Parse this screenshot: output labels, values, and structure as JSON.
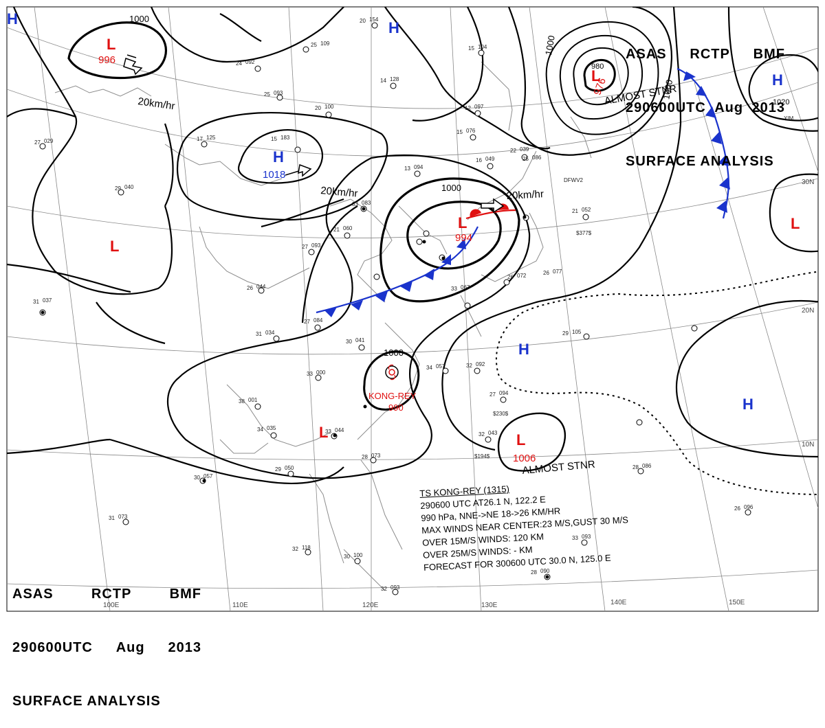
{
  "header_top": {
    "line1": [
      "ASAS",
      "RCTP",
      "BMF"
    ],
    "line2": [
      "290600UTC",
      "Aug",
      "2013"
    ],
    "line3": "SURFACE ANALYSIS"
  },
  "header_bottom": {
    "line1": [
      "ASAS",
      "RCTP",
      "BMF"
    ],
    "line2": [
      "290600UTC",
      "Aug",
      "2013"
    ],
    "line3": "SURFACE ANALYSIS"
  },
  "colors": {
    "high": "#1a33cc",
    "low": "#e01010",
    "cold_front": "#1a33cc",
    "warm_front": "#e01010",
    "isobar": "#000000",
    "grid": "#888888",
    "coast": "#999999"
  },
  "longitude_labels": [
    "110E",
    "120E",
    "130E",
    "140E",
    "150E",
    "100E"
  ],
  "latitude_labels": [
    "30N",
    "20N",
    "10N"
  ],
  "pressure_systems": [
    {
      "type": "H",
      "value": ""
    },
    {
      "type": "L",
      "value": "996"
    },
    {
      "type": "H",
      "value": ""
    },
    {
      "type": "H",
      "value": "1018"
    },
    {
      "type": "L",
      "value": ""
    },
    {
      "type": "L",
      "value": "994"
    },
    {
      "type": "L",
      "value": "976"
    },
    {
      "type": "H",
      "value": ""
    },
    {
      "type": "L",
      "value": ""
    },
    {
      "type": "H",
      "value": ""
    },
    {
      "type": "H",
      "value": ""
    },
    {
      "type": "L",
      "value": "1006"
    },
    {
      "type": "L",
      "value": ""
    }
  ],
  "isobar_labels": [
    "1000",
    "1000",
    "1000",
    "1000",
    "1000",
    "980",
    "1020"
  ],
  "motion_labels": [
    "20km/hr",
    "20km/hr",
    "20km/hr"
  ],
  "annotations": [
    "ALMOST STNR",
    "ALMOST STNR"
  ],
  "typhoon": {
    "name": "KONG-REY",
    "pressure": "990"
  },
  "storm_info": {
    "title": "TS KONG-REY (1315)",
    "line1": "290600 UTC  AT26.1 N, 122.2 E",
    "line2": "990 hPa, NNE->NE  18->26 KM/HR",
    "line3": "MAX WINDS NEAR CENTER:23 M/S,GUST 30 M/S",
    "line4": "OVER 15M/S WINDS: 120 KM",
    "line5": "OVER 25M/S WINDS: - KM",
    "line6": "FORECAST FOR 300600 UTC 30.0 N, 125.0 E"
  },
  "station_reports": [
    {
      "temp": "20",
      "pressure": "154"
    },
    {
      "temp": "25",
      "pressure": "109"
    },
    {
      "temp": "24",
      "pressure": "092"
    },
    {
      "temp": "25",
      "pressure": "093"
    },
    {
      "temp": "20",
      "pressure": "100"
    },
    {
      "temp": "14",
      "pressure": "128"
    },
    {
      "temp": "15",
      "pressure": "104"
    },
    {
      "temp": "12",
      "pressure": "097"
    },
    {
      "temp": "15",
      "pressure": "076"
    },
    {
      "temp": "17",
      "pressure": "125"
    },
    {
      "temp": "15",
      "pressure": "183"
    },
    {
      "temp": "27",
      "pressure": "029"
    },
    {
      "temp": "29",
      "pressure": "040"
    },
    {
      "temp": "33",
      "pressure": "083"
    },
    {
      "temp": "13",
      "pressure": "094"
    },
    {
      "temp": "16",
      "pressure": "049"
    },
    {
      "temp": "22",
      "pressure": "039"
    },
    {
      "temp": "21",
      "pressure": "052"
    },
    {
      "temp": "21",
      "pressure": "060"
    },
    {
      "temp": "27",
      "pressure": "093"
    },
    {
      "temp": "26",
      "pressure": "044"
    },
    {
      "temp": "27",
      "pressure": "084"
    },
    {
      "temp": "31",
      "pressure": "034"
    },
    {
      "temp": "31",
      "pressure": "037"
    },
    {
      "temp": "30",
      "pressure": "041"
    },
    {
      "temp": "33",
      "pressure": "000"
    },
    {
      "temp": "38",
      "pressure": "001"
    },
    {
      "temp": "34",
      "pressure": "035"
    },
    {
      "temp": "33",
      "pressure": "044"
    },
    {
      "temp": "29",
      "pressure": "050"
    },
    {
      "temp": "30",
      "pressure": "057"
    },
    {
      "temp": "28",
      "pressure": "073"
    },
    {
      "temp": "31",
      "pressure": "073"
    },
    {
      "temp": "32",
      "pressure": "118"
    },
    {
      "temp": "30",
      "pressure": "100"
    },
    {
      "temp": "32",
      "pressure": "093"
    },
    {
      "temp": "32",
      "pressure": "092"
    },
    {
      "temp": "27",
      "pressure": "094"
    },
    {
      "temp": "32",
      "pressure": "043"
    },
    {
      "temp": "29",
      "pressure": "105"
    },
    {
      "temp": "26",
      "pressure": "096"
    },
    {
      "temp": "28",
      "pressure": "086"
    },
    {
      "temp": "33",
      "pressure": "093"
    },
    {
      "temp": "28",
      "pressure": "090"
    },
    {
      "temp": "34",
      "pressure": "057"
    },
    {
      "temp": "33",
      "pressure": "067"
    },
    {
      "temp": "26",
      "pressure": "072"
    },
    {
      "temp": "25",
      "pressure": "086"
    },
    {
      "temp": "26",
      "pressure": "077"
    }
  ],
  "station_codes": [
    "$377$",
    "$230$",
    "$194$",
    "DFWV2",
    "XIM"
  ]
}
